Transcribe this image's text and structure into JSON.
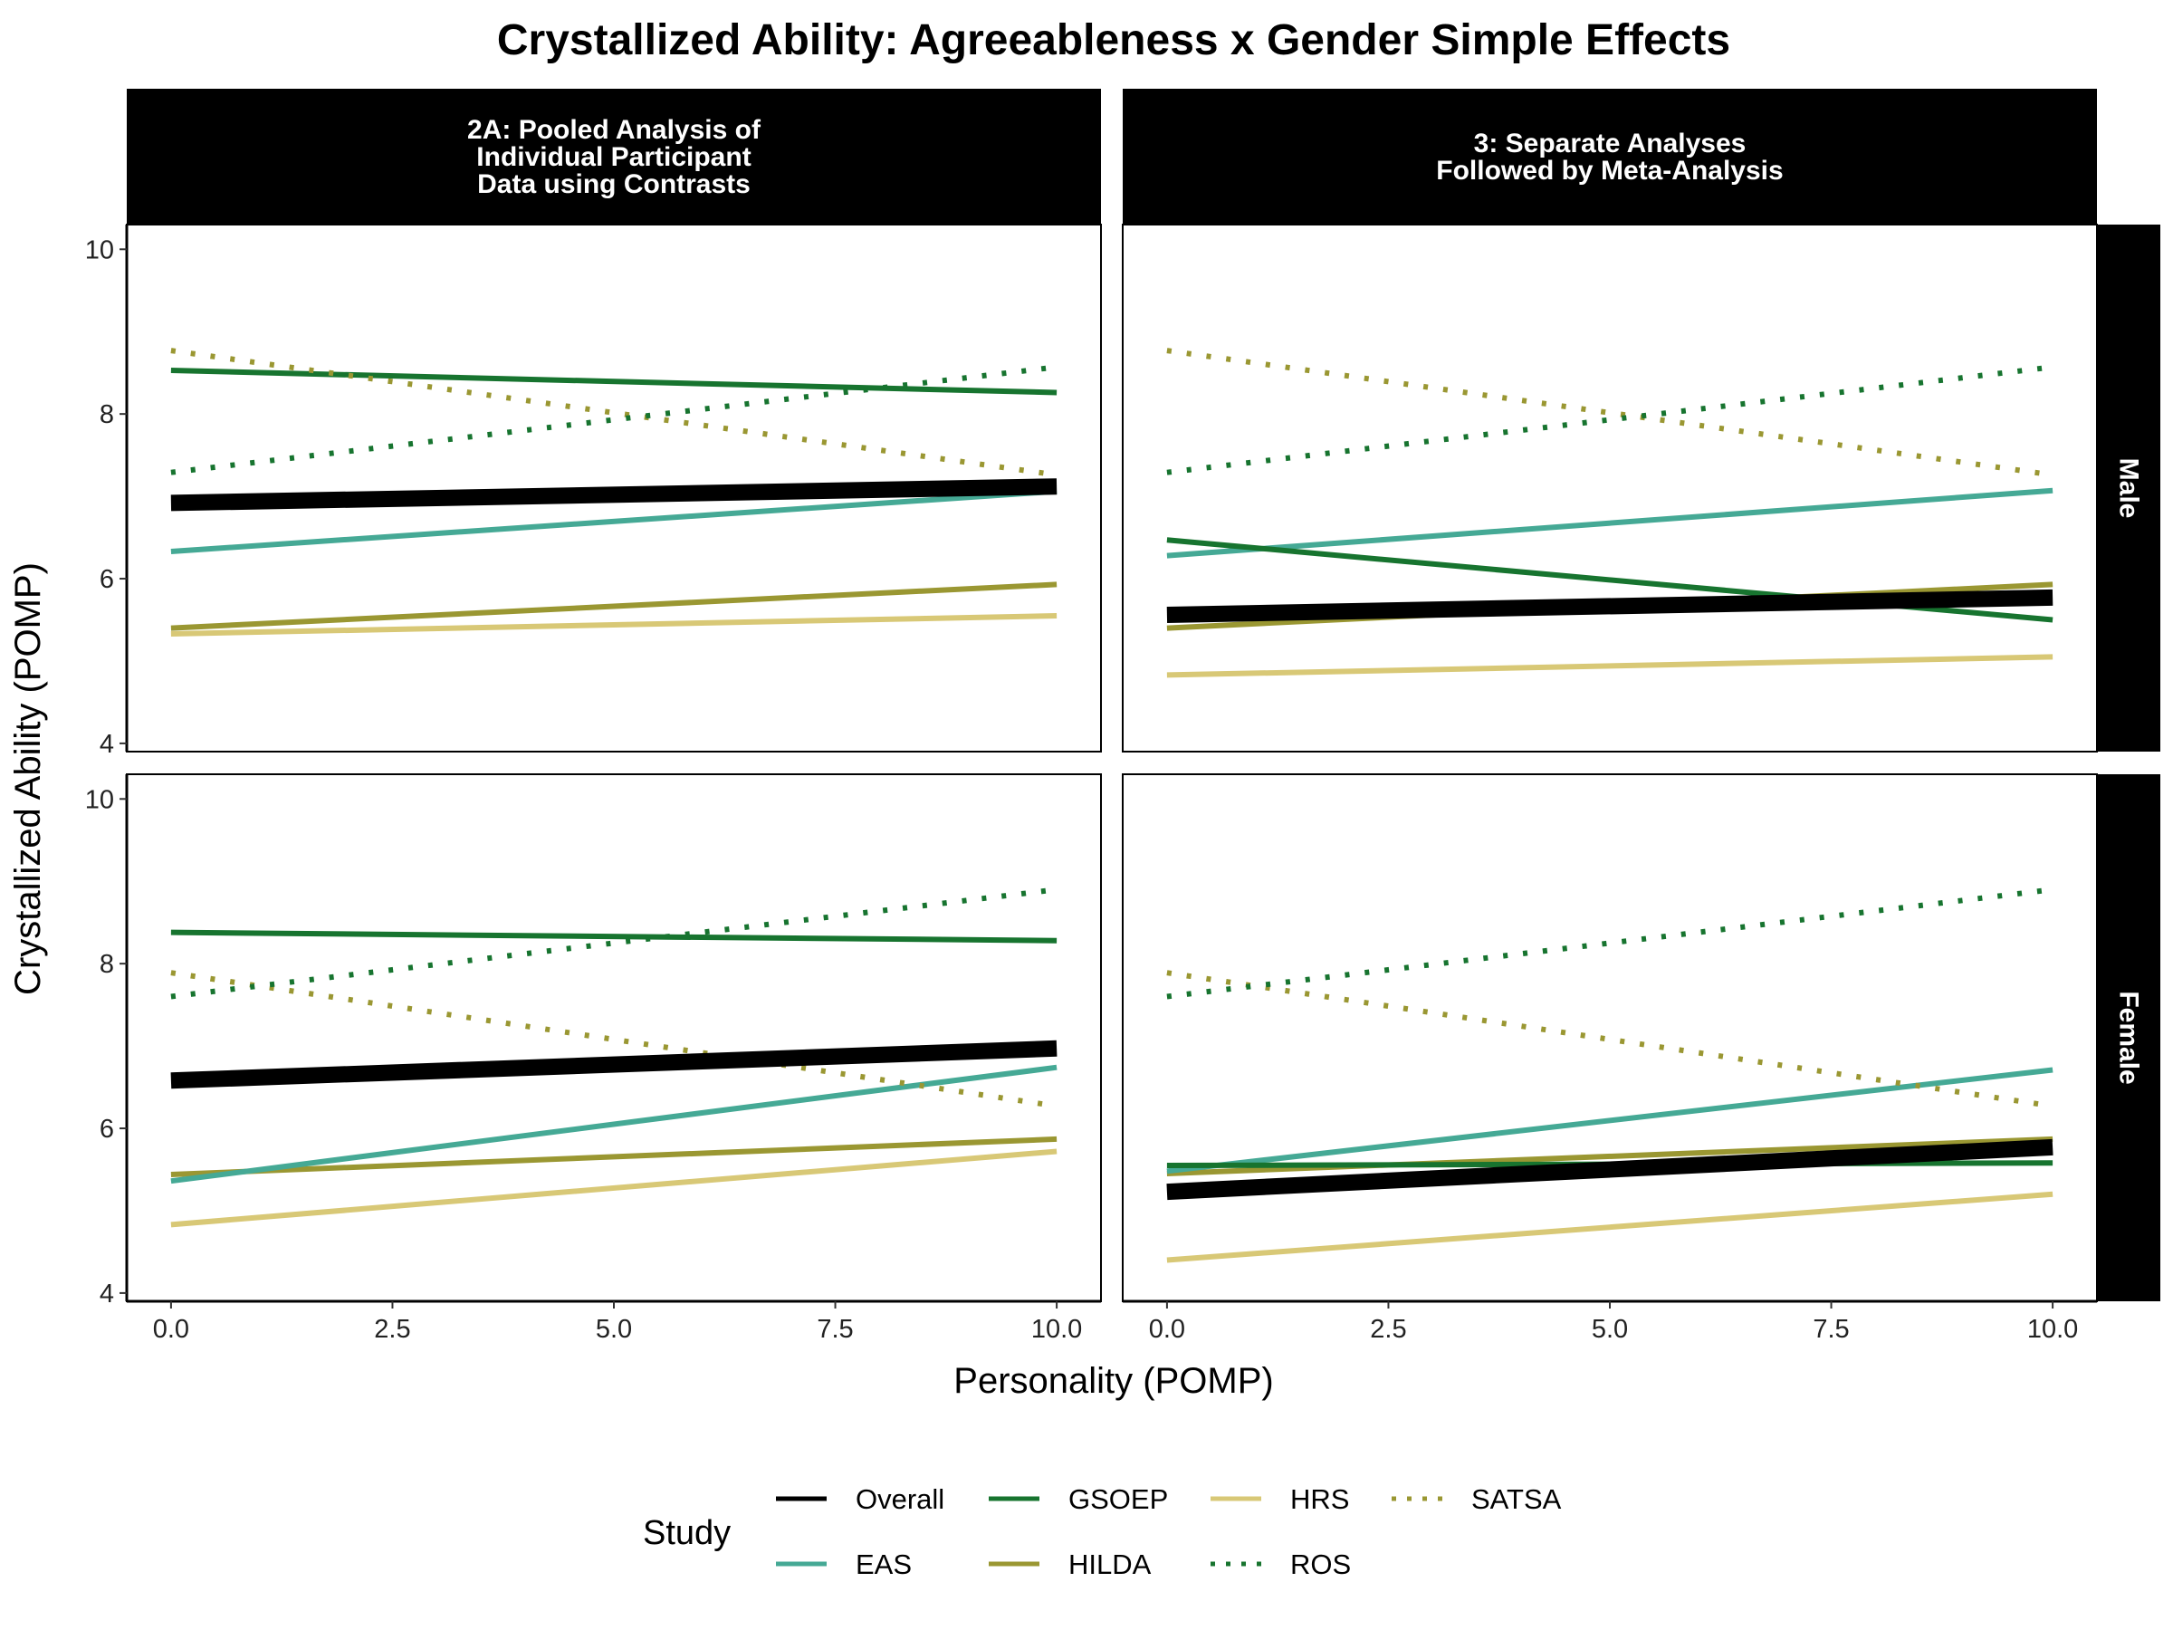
{
  "chart_data": {
    "type": "line",
    "title": "Crystallized Ability: Agreeableness x Gender Simple Effects",
    "xlabel": "Personality (POMP)",
    "ylabel": "Crystallized Ability (POMP)",
    "xlim": [
      -0.5,
      10.5
    ],
    "ylim": [
      3.9,
      10.3
    ],
    "x_ticks": [
      0,
      2.5,
      5,
      7.5,
      10
    ],
    "x_tick_labels": [
      "0.0",
      "2.5",
      "5.0",
      "7.5",
      "10.0"
    ],
    "y_ticks": [
      4,
      6,
      8,
      10
    ],
    "y_tick_labels": [
      "4",
      "6",
      "8",
      "10"
    ],
    "columns": [
      {
        "id": "2A",
        "label": "2A: Pooled Analysis of\nIndividual Participant\nData using Contrasts"
      },
      {
        "id": "3",
        "label": "3: Separate Analyses\nFollowed by Meta-Analysis"
      }
    ],
    "rows": [
      {
        "id": "male",
        "label": "Male"
      },
      {
        "id": "female",
        "label": "Female"
      }
    ],
    "legend": {
      "title": "Study",
      "position": "bottom",
      "entries": [
        {
          "name": "Overall",
          "color": "#000000",
          "linetype": "solid"
        },
        {
          "name": "EAS",
          "color": "#45A995",
          "linetype": "solid"
        },
        {
          "name": "GSOEP",
          "color": "#17742F",
          "linetype": "solid"
        },
        {
          "name": "HILDA",
          "color": "#9A9732",
          "linetype": "solid"
        },
        {
          "name": "HRS",
          "color": "#D8C876",
          "linetype": "solid"
        },
        {
          "name": "ROS",
          "color": "#17742F",
          "linetype": "dotted"
        },
        {
          "name": "SATSA",
          "color": "#9A9732",
          "linetype": "dotted"
        }
      ]
    },
    "panels": [
      {
        "column": "2A",
        "row": "male",
        "series": [
          {
            "name": "HRS",
            "x": [
              0,
              10
            ],
            "y": [
              5.33,
              5.55
            ]
          },
          {
            "name": "HILDA",
            "x": [
              0,
              10
            ],
            "y": [
              5.4,
              5.93
            ]
          },
          {
            "name": "EAS",
            "x": [
              0,
              10
            ],
            "y": [
              6.33,
              7.06
            ]
          },
          {
            "name": "GSOEP",
            "x": [
              0,
              10
            ],
            "y": [
              8.53,
              8.26
            ]
          },
          {
            "name": "SATSA",
            "x": [
              0,
              10
            ],
            "y": [
              8.77,
              7.26
            ]
          },
          {
            "name": "ROS",
            "x": [
              0,
              10
            ],
            "y": [
              7.29,
              8.57
            ]
          },
          {
            "name": "Overall",
            "x": [
              0,
              10
            ],
            "y": [
              6.92,
              7.12
            ]
          }
        ]
      },
      {
        "column": "3",
        "row": "male",
        "series": [
          {
            "name": "HRS",
            "x": [
              0,
              10
            ],
            "y": [
              4.83,
              5.05
            ]
          },
          {
            "name": "HILDA",
            "x": [
              0,
              10
            ],
            "y": [
              5.4,
              5.93
            ]
          },
          {
            "name": "EAS",
            "x": [
              0,
              10
            ],
            "y": [
              6.28,
              7.07
            ]
          },
          {
            "name": "GSOEP",
            "x": [
              0,
              10
            ],
            "y": [
              6.47,
              5.5
            ]
          },
          {
            "name": "SATSA",
            "x": [
              0,
              10
            ],
            "y": [
              8.77,
              7.26
            ]
          },
          {
            "name": "ROS",
            "x": [
              0,
              10
            ],
            "y": [
              7.29,
              8.57
            ]
          },
          {
            "name": "Overall",
            "x": [
              0,
              10
            ],
            "y": [
              5.56,
              5.77
            ]
          }
        ]
      },
      {
        "column": "2A",
        "row": "female",
        "series": [
          {
            "name": "HRS",
            "x": [
              0,
              10
            ],
            "y": [
              4.83,
              5.72
            ]
          },
          {
            "name": "HILDA",
            "x": [
              0,
              10
            ],
            "y": [
              5.44,
              5.87
            ]
          },
          {
            "name": "EAS",
            "x": [
              0,
              10
            ],
            "y": [
              5.36,
              6.74
            ]
          },
          {
            "name": "GSOEP",
            "x": [
              0,
              10
            ],
            "y": [
              8.38,
              8.28
            ]
          },
          {
            "name": "SATSA",
            "x": [
              0,
              10
            ],
            "y": [
              7.89,
              6.27
            ]
          },
          {
            "name": "ROS",
            "x": [
              0,
              10
            ],
            "y": [
              7.6,
              8.9
            ]
          },
          {
            "name": "Overall",
            "x": [
              0,
              10
            ],
            "y": [
              6.58,
              6.97
            ]
          }
        ]
      },
      {
        "column": "3",
        "row": "female",
        "series": [
          {
            "name": "HRS",
            "x": [
              0,
              10
            ],
            "y": [
              4.4,
              5.2
            ]
          },
          {
            "name": "HILDA",
            "x": [
              0,
              10
            ],
            "y": [
              5.45,
              5.87
            ]
          },
          {
            "name": "EAS",
            "x": [
              0,
              10
            ],
            "y": [
              5.48,
              6.71
            ]
          },
          {
            "name": "GSOEP",
            "x": [
              0,
              10
            ],
            "y": [
              5.55,
              5.58
            ]
          },
          {
            "name": "SATSA",
            "x": [
              0,
              10
            ],
            "y": [
              7.89,
              6.27
            ]
          },
          {
            "name": "ROS",
            "x": [
              0,
              10
            ],
            "y": [
              7.6,
              8.9
            ]
          },
          {
            "name": "Overall",
            "x": [
              0,
              10
            ],
            "y": [
              5.23,
              5.77
            ]
          }
        ]
      }
    ]
  }
}
